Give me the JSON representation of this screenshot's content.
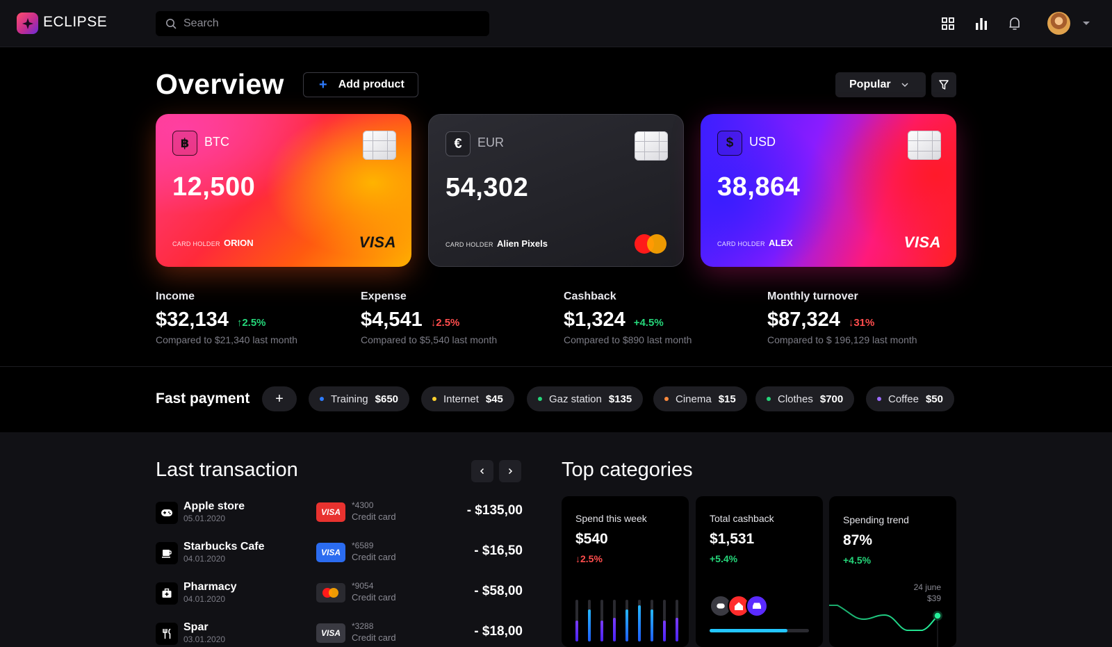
{
  "app": {
    "name": "ECLIPSE"
  },
  "search": {
    "placeholder": "Search"
  },
  "header": {
    "title": "Overview",
    "add_product": "Add product",
    "sort": "Popular"
  },
  "cards": [
    {
      "currency": "BTC",
      "amount": "12,500",
      "holder_label": "CARD HOLDER",
      "holder": "ORION",
      "network": "VISA"
    },
    {
      "currency": "EUR",
      "amount": "54,302",
      "holder_label": "CARD HOLDER",
      "holder": "Alien Pixels",
      "network": "mastercard"
    },
    {
      "currency": "USD",
      "amount": "38,864",
      "holder_label": "CARD HOLDER",
      "holder": "ALEX",
      "network": "VISA"
    }
  ],
  "stats": [
    {
      "label": "Income",
      "value": "$32,134",
      "change": "2.5%",
      "direction": "up",
      "compare": "Compared to $21,340 last month"
    },
    {
      "label": "Expense",
      "value": "$4,541",
      "change": "2.5%",
      "direction": "down",
      "compare": "Compared to $5,540 last month"
    },
    {
      "label": "Cashback",
      "value": "$1,324",
      "change": "+4.5%",
      "direction": "up",
      "compare": "Compared to $890 last month"
    },
    {
      "label": "Monthly turnover",
      "value": "$87,324",
      "change": "31%",
      "direction": "down",
      "compare": "Compared to $ 196,129 last month"
    }
  ],
  "fast_payment": {
    "title": "Fast payment",
    "items": [
      {
        "name": "Training",
        "amount": "$650",
        "color": "#2e7cff"
      },
      {
        "name": "Internet",
        "amount": "$45",
        "color": "#ffd12e"
      },
      {
        "name": "Gaz station",
        "amount": "$135",
        "color": "#25d67a"
      },
      {
        "name": "Cinema",
        "amount": "$15",
        "color": "#ff8a3d"
      },
      {
        "name": "Clothes",
        "amount": "$700",
        "color": "#25d67a"
      },
      {
        "name": "Coffee",
        "amount": "$50",
        "color": "#9b6bff"
      }
    ]
  },
  "transactions": {
    "title": "Last transaction",
    "items": [
      {
        "name": "Apple store",
        "date": "05.01.2020",
        "card_number": "*4300",
        "card_type": "Credit card",
        "card_brand": "VISA",
        "card_color": "#e8322f",
        "amount": "- $135,00",
        "icon": "gamepad-icon"
      },
      {
        "name": "Starbucks Cafe",
        "date": "04.01.2020",
        "card_number": "*6589",
        "card_type": "Credit card",
        "card_brand": "VISA",
        "card_color": "#2b6cf0",
        "amount": "- $16,50",
        "icon": "coffee-icon"
      },
      {
        "name": "Pharmacy",
        "date": "04.01.2020",
        "card_number": "*9054",
        "card_type": "Credit card",
        "card_brand": "mastercard",
        "card_color": "#2a2a30",
        "amount": "- $58,00",
        "icon": "medkit-icon"
      },
      {
        "name": "Spar",
        "date": "03.01.2020",
        "card_number": "*3288",
        "card_type": "Credit card",
        "card_brand": "VISA",
        "card_color": "#3a3a42",
        "amount": "- $18,00",
        "icon": "cutlery-icon"
      }
    ]
  },
  "top_categories": {
    "title": "Top categories",
    "cards": [
      {
        "title": "Spend this week",
        "value": "$540",
        "change": "2.5%",
        "direction": "down"
      },
      {
        "title": "Total cashback",
        "value": "$1,531",
        "change": "+5.4%",
        "direction": "up",
        "progress": 0.78
      },
      {
        "title": "Spending trend",
        "value": "87%",
        "change": "+4.5%",
        "direction": "up",
        "tooltip_date": "24 june",
        "tooltip_value": "$39"
      }
    ]
  }
}
